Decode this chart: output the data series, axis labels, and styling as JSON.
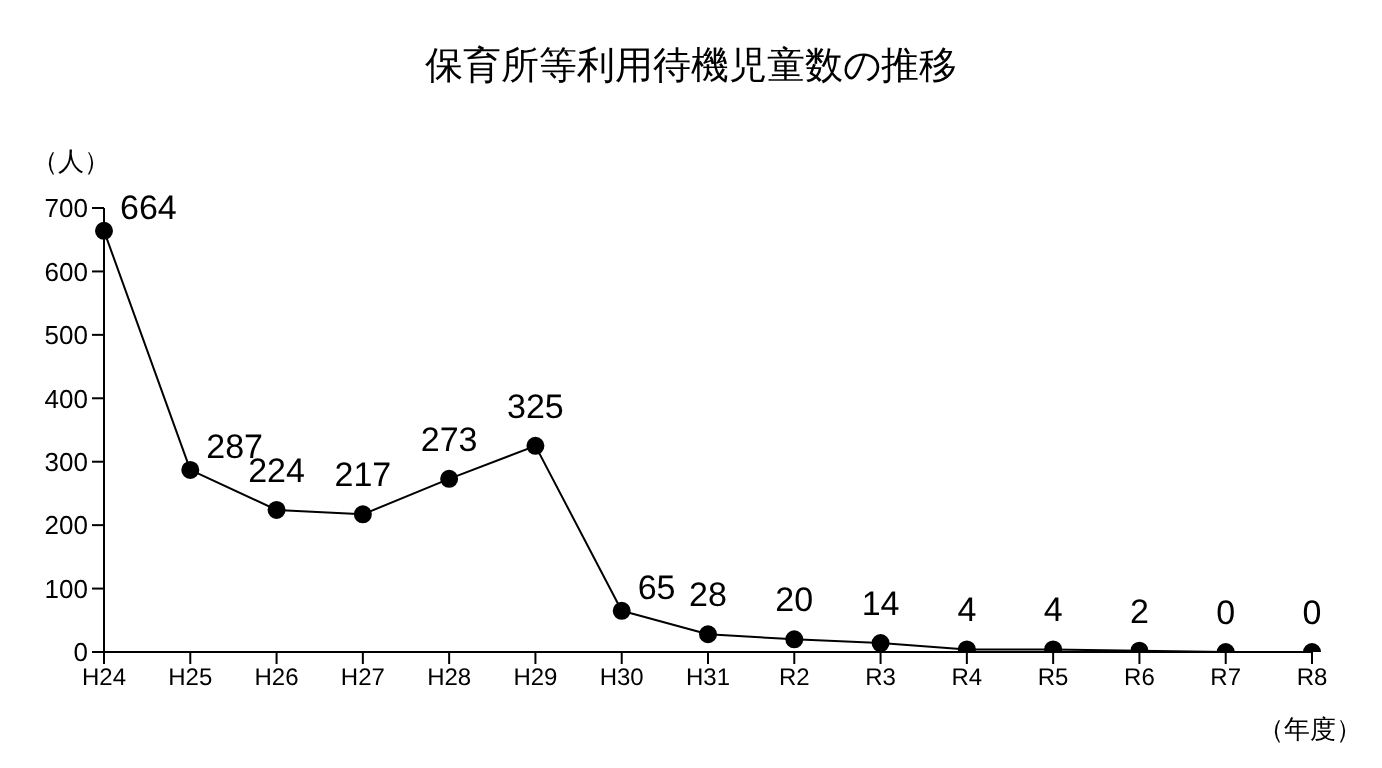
{
  "chart_data": {
    "type": "line",
    "title": "保育所等利用待機児童数の推移",
    "ylabel": "（人）",
    "xlabel": "（年度）",
    "categories": [
      "H24",
      "H25",
      "H26",
      "H27",
      "H28",
      "H29",
      "H30",
      "H31",
      "R2",
      "R3",
      "R4",
      "R5",
      "R6",
      "R7",
      "R8"
    ],
    "series": [
      {
        "color": "#000000",
        "values": [
          664,
          287,
          224,
          217,
          273,
          325,
          65,
          28,
          20,
          14,
          4,
          4,
          2,
          0,
          0
        ]
      }
    ],
    "ylim": [
      0,
      700
    ],
    "yticks": [
      0,
      100,
      200,
      300,
      400,
      500,
      600,
      700
    ],
    "marker": "circle",
    "line_style": "solid",
    "data_labels": true
  }
}
